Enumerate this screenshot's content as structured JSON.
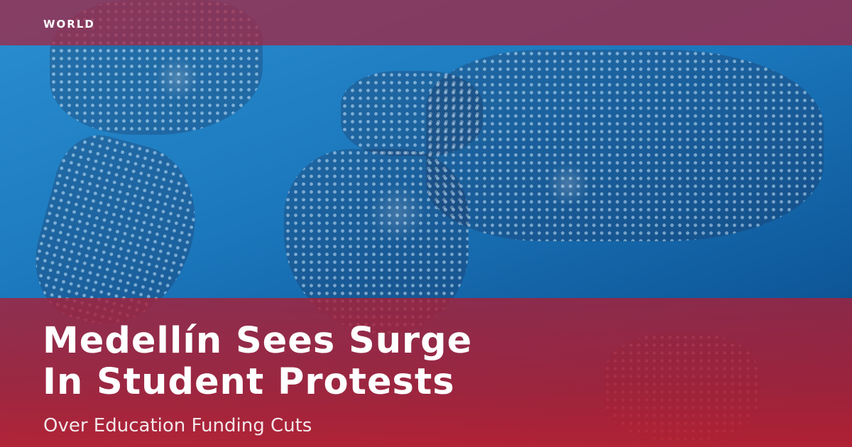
{
  "category": "WORLD",
  "headline": {
    "line1": "Medellín Sees Surge",
    "line2": "In Student Protests"
  },
  "subtitle": "Over Education Funding Cuts",
  "colors": {
    "overlay": "#a8284a",
    "background": "#1c78bd"
  },
  "image": "world-map-icon"
}
